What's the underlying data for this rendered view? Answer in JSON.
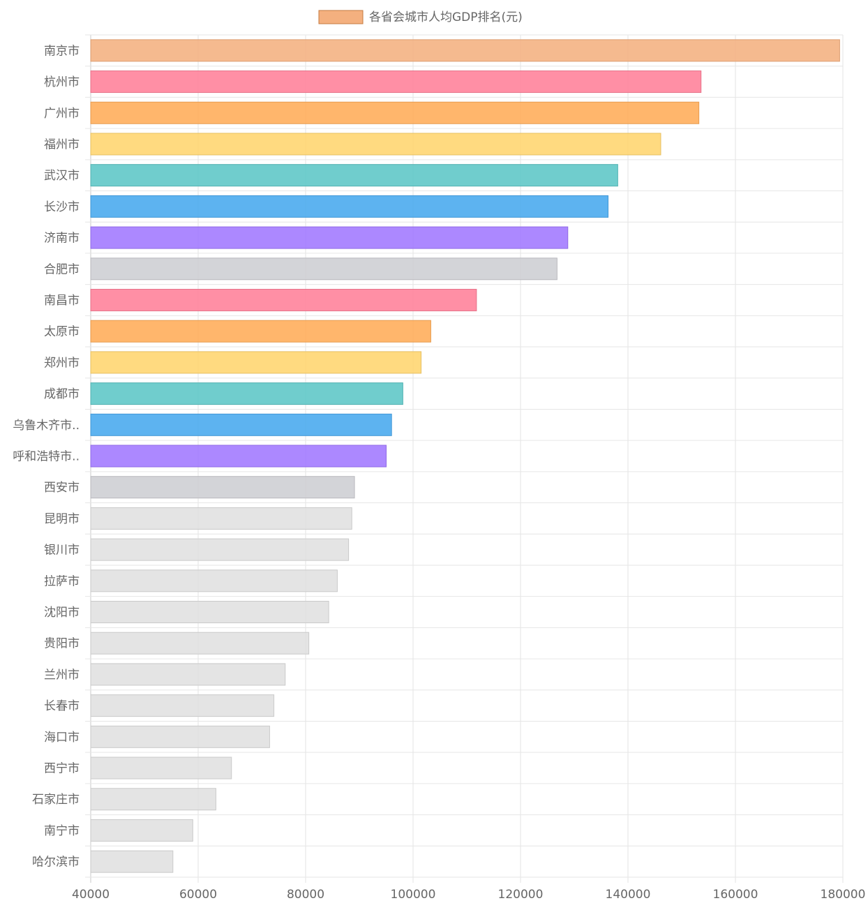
{
  "chart_data": {
    "type": "bar",
    "orientation": "horizontal",
    "legend": {
      "label": "各省会城市人均GDP排名(元)",
      "position": "top-center",
      "swatch_color": "#f4b07f"
    },
    "categories": [
      "南京市",
      "杭州市",
      "广州市",
      "福州市",
      "武汉市",
      "长沙市",
      "济南市",
      "合肥市",
      "南昌市",
      "太原市",
      "郑州市",
      "成都市",
      "乌鲁木齐市..",
      "呼和浩特市..",
      "西安市",
      "昆明市",
      "银川市",
      "拉萨市",
      "沈阳市",
      "贵阳市",
      "兰州市",
      "长春市",
      "海口市",
      "西宁市",
      "石家庄市",
      "南宁市",
      "哈尔滨市"
    ],
    "series": [
      {
        "name": "各省会城市人均GDP排名(元)",
        "values": [
          179400,
          153600,
          153200,
          146100,
          138100,
          136300,
          128800,
          126800,
          111800,
          103300,
          101500,
          98100,
          96000,
          95000,
          89100,
          88600,
          88000,
          85900,
          84300,
          80600,
          76200,
          74100,
          73300,
          66200,
          63300,
          59000,
          55300
        ]
      }
    ],
    "colors": [
      "#f4b07f",
      "#ff7f98",
      "#ffac58",
      "#ffd56e",
      "#5cc6c6",
      "#47a8ee",
      "#a077ff",
      "#cdced3",
      "#ff7f98",
      "#ffac58",
      "#ffd56e",
      "#5cc6c6",
      "#47a8ee",
      "#a077ff",
      "#cdced3",
      "#e0e0e0",
      "#e0e0e0",
      "#e0e0e0",
      "#e0e0e0",
      "#e0e0e0",
      "#e0e0e0",
      "#e0e0e0",
      "#e0e0e0",
      "#e0e0e0",
      "#e0e0e0",
      "#e0e0e0",
      "#e0e0e0"
    ],
    "xlim": [
      40000,
      180000
    ],
    "x_ticks": [
      "40000",
      "60000",
      "80000",
      "100000",
      "120000",
      "140000",
      "160000",
      "180000"
    ],
    "grid": true
  }
}
